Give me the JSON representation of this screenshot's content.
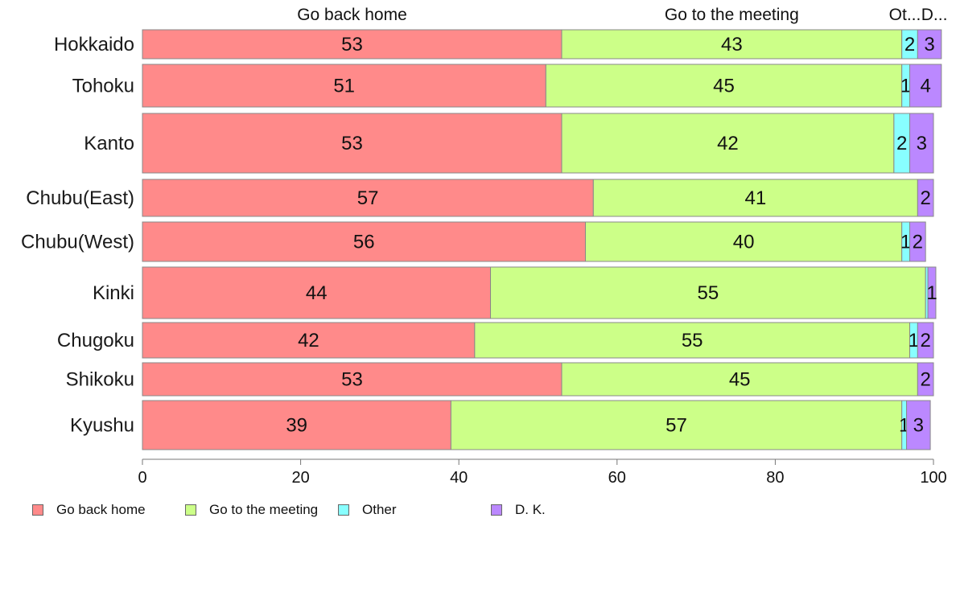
{
  "chart_data": {
    "type": "bar",
    "orientation": "horizontal",
    "stacked": true,
    "xlim": [
      0,
      100
    ],
    "x_ticks": [
      "0",
      "20",
      "40",
      "60",
      "80",
      "100"
    ],
    "categories": [
      "Hokkaido",
      "Tohoku",
      "Kanto",
      "Chubu(East)",
      "Chubu(West)",
      "Kinki",
      "Chugoku",
      "Shikoku",
      "Kyushu"
    ],
    "series": [
      {
        "name": "Go back home",
        "color": "#FF8A8A",
        "values": [
          53,
          51,
          53,
          57,
          56,
          44,
          42,
          53,
          39
        ]
      },
      {
        "name": "Go to the meeting",
        "color": "#CCFF88",
        "values": [
          43,
          45,
          42,
          41,
          40,
          55,
          55,
          45,
          57
        ]
      },
      {
        "name": "Other",
        "color": "#88FFFF",
        "values": [
          2,
          1,
          2,
          0,
          1,
          0.3,
          1,
          0,
          0.6
        ]
      },
      {
        "name": "D. K.",
        "color": "#BB88FF",
        "values": [
          3,
          4,
          3,
          2,
          2,
          1,
          2,
          2,
          3
        ]
      }
    ],
    "bar_labels": [
      [
        "53",
        "43",
        "2",
        "3"
      ],
      [
        "51",
        "45",
        "1",
        "4"
      ],
      [
        "53",
        "42",
        "2",
        "3"
      ],
      [
        "57",
        "41",
        "",
        "2"
      ],
      [
        "56",
        "40",
        "1",
        "2"
      ],
      [
        "44",
        "55",
        "",
        "1"
      ],
      [
        "42",
        "55",
        "1",
        "2"
      ],
      [
        "53",
        "45",
        "",
        "2"
      ],
      [
        "39",
        "57",
        "1",
        "3"
      ]
    ],
    "top_labels": [
      "Go back home",
      "Go to the meeting",
      "Ot...",
      "D..."
    ],
    "legend": {
      "position": "bottom-left",
      "entries": [
        "Go back home",
        "Go to the meeting",
        "Other",
        "D. K."
      ]
    },
    "grid": false
  }
}
